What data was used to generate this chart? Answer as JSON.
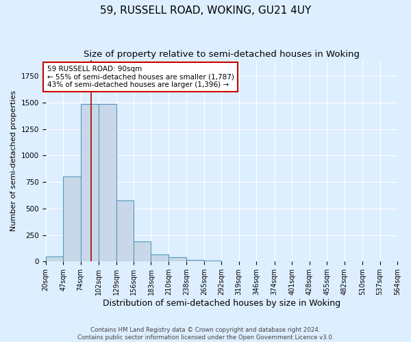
{
  "title": "59, RUSSELL ROAD, WOKING, GU21 4UY",
  "subtitle": "Size of property relative to semi-detached houses in Woking",
  "xlabel": "Distribution of semi-detached houses by size in Woking",
  "ylabel": "Number of semi-detached properties",
  "bin_edges": [
    20,
    47,
    74,
    102,
    129,
    156,
    183,
    210,
    238,
    265,
    292,
    319,
    346,
    374,
    401,
    428,
    455,
    482,
    510,
    537,
    564
  ],
  "bar_heights": [
    50,
    800,
    1487,
    1487,
    575,
    190,
    65,
    40,
    15,
    8,
    5,
    5,
    4,
    3,
    3,
    2,
    2,
    1,
    1,
    1
  ],
  "bar_color": "#c8d8e8",
  "bar_edge_color": "#5599bb",
  "bar_linewidth": 0.8,
  "property_size": 90,
  "red_line_color": "#aa0000",
  "annotation_text": "59 RUSSELL ROAD: 90sqm\n← 55% of semi-detached houses are smaller (1,787)\n43% of semi-detached houses are larger (1,396) →",
  "annotation_box_color": "#ffffff",
  "annotation_box_edgecolor": "#cc0000",
  "annotation_fontsize": 7.5,
  "ylim": [
    0,
    1900
  ],
  "background_color": "#ddeeff",
  "grid_color": "#ffffff",
  "footer_text": "Contains HM Land Registry data © Crown copyright and database right 2024.\nContains public sector information licensed under the Open Government Licence v3.0.",
  "title_fontsize": 11,
  "subtitle_fontsize": 9.5,
  "xlabel_fontsize": 9,
  "ylabel_fontsize": 8,
  "tick_fontsize": 7
}
